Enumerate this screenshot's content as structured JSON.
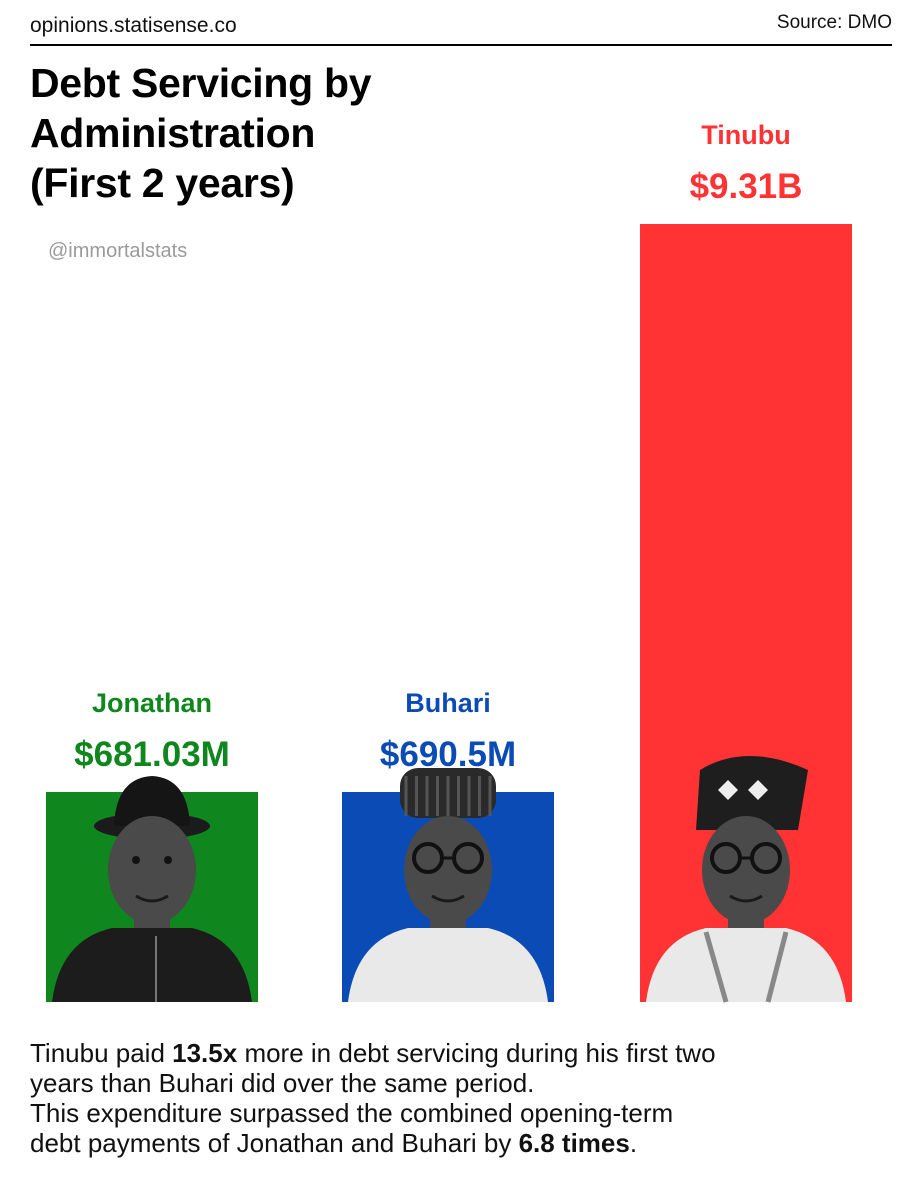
{
  "header": {
    "site": "opinions.statisense.co",
    "source": "Source: DMO"
  },
  "title_lines": [
    "Debt Servicing by Administration",
    "(First 2 years)"
  ],
  "watermark": "@immortalstats",
  "chart_data": {
    "type": "bar",
    "title": "Debt Servicing by Administration (First 2 years)",
    "unit": "USD",
    "categories": [
      "Jonathan",
      "Buhari",
      "Tinubu"
    ],
    "values": [
      681030000,
      690500000,
      9310000000
    ],
    "value_labels": [
      "$681.03M",
      "$690.5M",
      "$9.31B"
    ],
    "colors": [
      "#10861F",
      "#0B4BB5",
      "#FF3334"
    ],
    "photo_icons": [
      "jonathan-portrait",
      "buhari-portrait",
      "tinubu-portrait"
    ]
  },
  "caption": {
    "l1_pre": "Tinubu paid ",
    "l1_bold": "13.5x",
    "l1_post": " more in debt servicing during his first two",
    "l2": "years than Buhari did over the same period.",
    "l3": "This expenditure surpassed the combined opening-term",
    "l4_pre": "debt payments of Jonathan and Buhari by ",
    "l4_bold": "6.8 times",
    "l4_post": "."
  }
}
